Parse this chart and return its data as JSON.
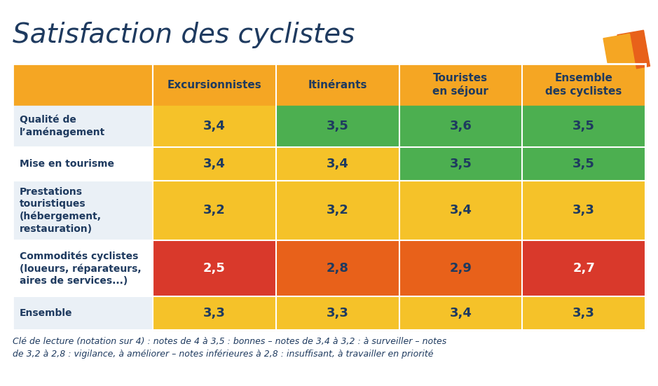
{
  "title": "Satisfaction des cyclistes",
  "columns": [
    "Excursionnistes",
    "Itinérants",
    "Touristes\nen séjour",
    "Ensemble\ndes cyclistes"
  ],
  "rows": [
    {
      "label": "Qualité de\nl’aménagement",
      "values": [
        3.4,
        3.5,
        3.6,
        3.5
      ],
      "colors": [
        "#F5C229",
        "#4CAF50",
        "#4CAF50",
        "#4CAF50"
      ]
    },
    {
      "label": "Mise en tourisme",
      "values": [
        3.4,
        3.4,
        3.5,
        3.5
      ],
      "colors": [
        "#F5C229",
        "#F5C229",
        "#4CAF50",
        "#4CAF50"
      ]
    },
    {
      "label": "Prestations\ntouristiques\n(hébergement,\nrestauration)",
      "values": [
        3.2,
        3.2,
        3.4,
        3.3
      ],
      "colors": [
        "#F5C229",
        "#F5C229",
        "#F5C229",
        "#F5C229"
      ]
    },
    {
      "label": "Commodités cyclistes\n(loueurs, réparateurs,\naires de services...)",
      "values": [
        2.5,
        2.8,
        2.9,
        2.7
      ],
      "colors": [
        "#D9392B",
        "#E8611A",
        "#E8611A",
        "#D9392B"
      ]
    },
    {
      "label": "Ensemble",
      "values": [
        3.3,
        3.3,
        3.4,
        3.3
      ],
      "colors": [
        "#F5C229",
        "#F5C229",
        "#F5C229",
        "#F5C229"
      ]
    }
  ],
  "header_bg": "#F5A623",
  "label_bg_odd": "#EAF0F6",
  "label_bg_even": "#FFFFFF",
  "text_dark": "#1E3A5F",
  "text_white": "#FFFFFF",
  "footer": "Clé de lecture (notation sur 4) : notes de 4 à 3,5 : bonnes – notes de 3,4 à 3,2 : à surveiller – notes\nde 3,2 à 2,8 : vigilance, à améliorer – notes inférieures à 2,8 : insuffisant, à travailler en priorité",
  "fig_bg": "#FFFFFF"
}
